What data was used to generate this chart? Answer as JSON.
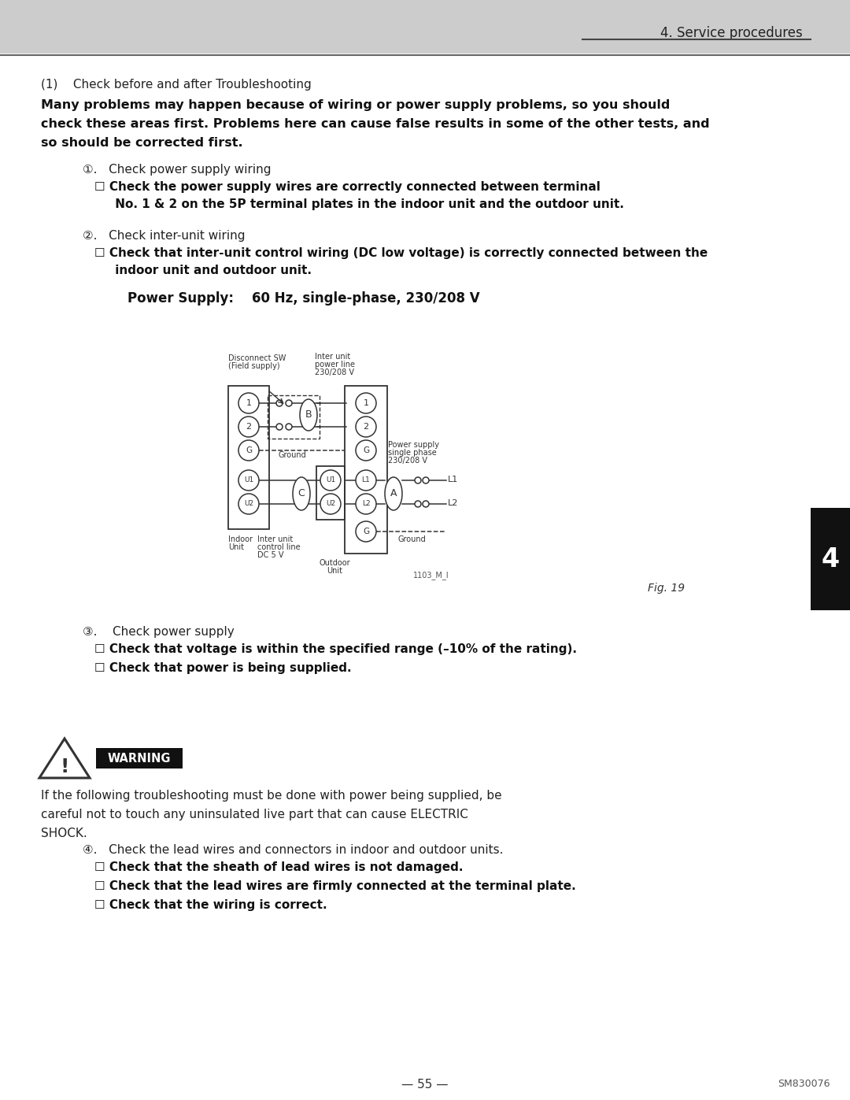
{
  "page_header": "4. Service procedures",
  "section_title": "(1)    Check before and after Troubleshooting",
  "bold_line1": "Many problems may happen because of wiring or power supply problems, so you should",
  "bold_line2": "check these areas first. Problems here can cause false results in some of the other tests, and",
  "bold_line3": "so should be corrected first.",
  "item1_header": "①.   Check power supply wiring",
  "item1_check_line1": "☐ Check the power supply wires are correctly connected between terminal",
  "item1_check_line2": "     No. 1 & 2 on the 5P terminal plates in the indoor unit and the outdoor unit.",
  "item2_header": "②.   Check inter-unit wiring",
  "item2_check_line1": "☐ Check that inter-unit control wiring (DC low voltage) is correctly connected between the",
  "item2_check_line2": "     indoor unit and outdoor unit.",
  "power_supply_label": "Power Supply:    60 Hz, single-phase, 230/208 V",
  "fig_label": "Fig. 19",
  "fig_code": "1103_M_I",
  "item3_header": "③.    Check power supply",
  "item3_check1": "☐ Check that voltage is within the specified range (–10% of the rating).",
  "item3_check2": "☐ Check that power is being supplied.",
  "warning_text": "WARNING",
  "warn_line1": "If the following troubleshooting must be done with power being supplied, be",
  "warn_line2": "careful not to touch any uninsulated live part that can cause ELECTRIC",
  "warn_line3": "SHOCK.",
  "item4_header": "④.   Check the lead wires and connectors in indoor and outdoor units.",
  "item4_check1": "☐ Check that the sheath of lead wires is not damaged.",
  "item4_check2": "☐ Check that the lead wires are firmly connected at the terminal plate.",
  "item4_check3": "☐ Check that the wiring is correct.",
  "page_number": "— 55 —",
  "doc_number": "SM830076",
  "bg_color": "#ffffff",
  "header_bg": "#cccccc",
  "tab_bg": "#111111",
  "tab_text": "4",
  "warning_bg": "#111111",
  "warn_text_color": "#ffffff",
  "line_color": "#333333"
}
